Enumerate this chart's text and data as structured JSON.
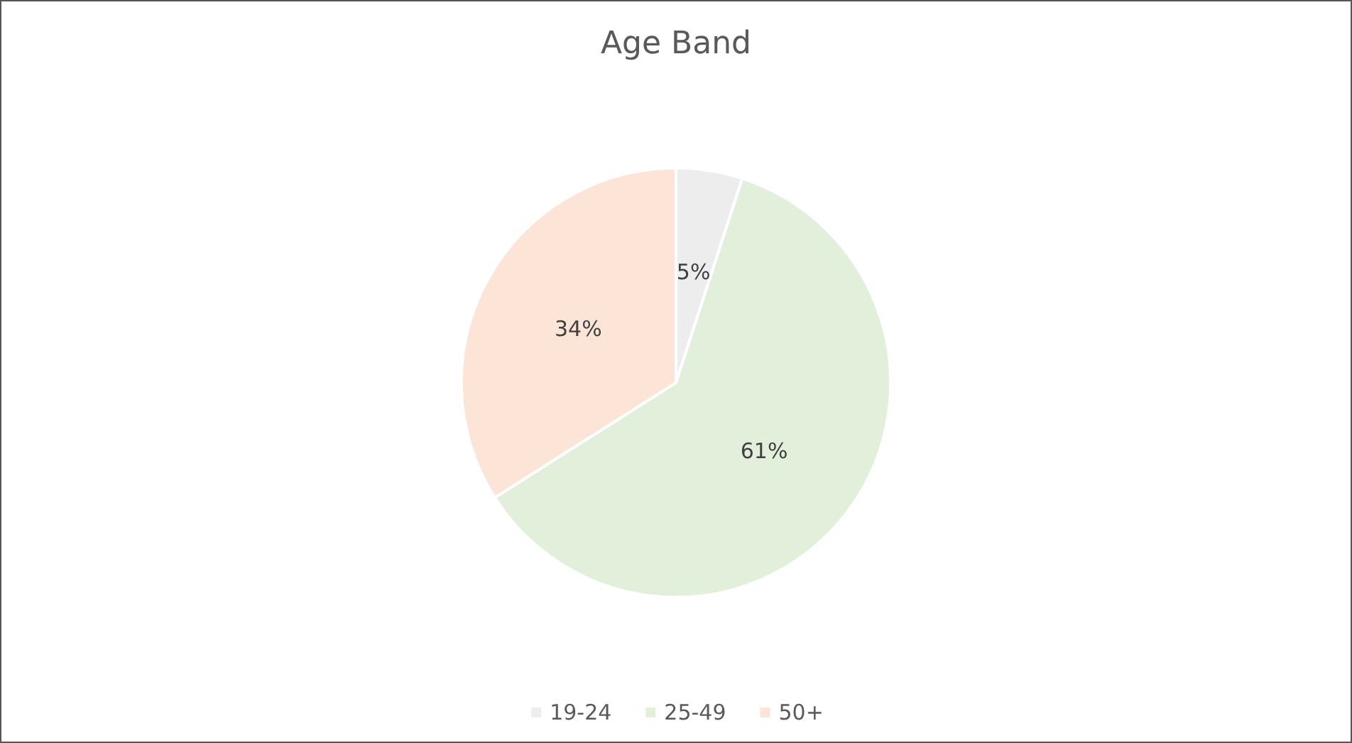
{
  "chart_data": {
    "type": "pie",
    "title": "Age Band",
    "categories": [
      "19-24",
      "25-49",
      "50+"
    ],
    "values": [
      5,
      61,
      34
    ],
    "value_labels": [
      "5%",
      "61%",
      "34%"
    ],
    "colors": [
      "#ededed",
      "#e2efda",
      "#fce4d6"
    ],
    "legend": "bottom"
  }
}
